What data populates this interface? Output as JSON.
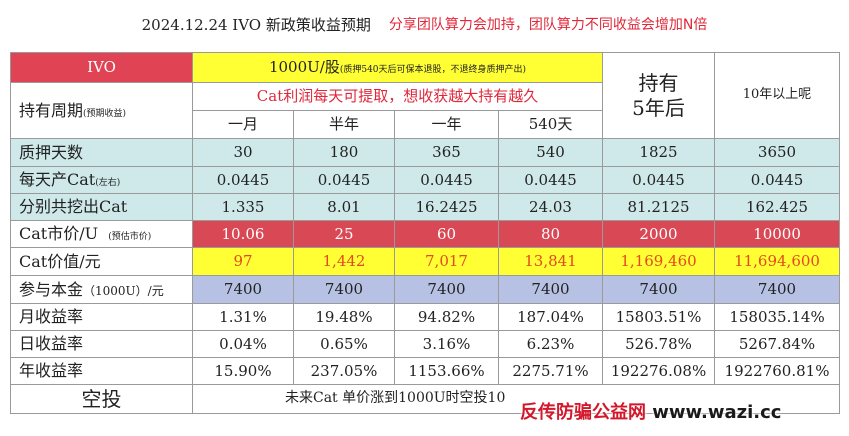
{
  "title": {
    "main": "2024.12.24 IVO  新政策收益预期",
    "sub": "分享团队算力会加持，团队算力不同收益会增加N倍"
  },
  "header": {
    "ivo": "IVO",
    "price_main": "1000U/股",
    "price_note": "(质押540天后可保本退股，不退终身质押产出)",
    "holding_label": "持有周期",
    "holding_note": "(预期收益)",
    "cat_note": "Cat利润每天可提取，想收获越大持有越久",
    "hold5": "持有\n5年后",
    "over10": "10年以上呢",
    "periods": [
      "一月",
      "半年",
      "一年",
      "540天"
    ]
  },
  "rows": {
    "pledge_days": {
      "label": "质押天数",
      "values": [
        "30",
        "180",
        "365",
        "540",
        "1825",
        "3650"
      ]
    },
    "daily_cat": {
      "label": "每天产Cat",
      "note": "(左右)",
      "values": [
        "0.0445",
        "0.0445",
        "0.0445",
        "0.0445",
        "0.0445",
        "0.0445"
      ]
    },
    "total_cat": {
      "label": "分别共挖出Cat",
      "values": [
        "1.335",
        "8.01",
        "16.2425",
        "24.03",
        "81.2125",
        "162.425"
      ]
    },
    "cat_price": {
      "label": "Cat市价/U",
      "note": "(预估市价)",
      "values": [
        "10.06",
        "25",
        "60",
        "80",
        "2000",
        "10000"
      ]
    },
    "cat_value": {
      "label": "Cat价值/元",
      "values": [
        "97",
        "1,442",
        "7,017",
        "13,841",
        "1,169,460",
        "11,694,600"
      ]
    },
    "principal": {
      "label": "参与本金",
      "note": "（1000U）/元",
      "values": [
        "7400",
        "7400",
        "7400",
        "7400",
        "7400",
        "7400"
      ]
    },
    "monthly": {
      "label": "月收益率",
      "values": [
        "1.31%",
        "19.48%",
        "94.82%",
        "187.04%",
        "15803.51%",
        "158035.14%"
      ]
    },
    "daily": {
      "label": "日收益率",
      "values": [
        "0.04%",
        "0.65%",
        "3.16%",
        "6.23%",
        "526.78%",
        "5267.84%"
      ]
    },
    "yearly": {
      "label": "年收益率",
      "values": [
        "15.90%",
        "237.05%",
        "1153.66%",
        "2275.71%",
        "192276.08%",
        "1922760.81%"
      ]
    }
  },
  "airdrop": {
    "label": "空投",
    "text": "未来Cat 单价涨到1000U时空投10"
  },
  "watermark": {
    "text": "反传防骗公益网",
    "url": "www.wazi.cc"
  },
  "colors": {
    "teal": "#cfe9ea",
    "red": "#d94855",
    "yellow": "#ffff33",
    "blue": "#b7c1e3",
    "accent_text": "#e0283a"
  }
}
